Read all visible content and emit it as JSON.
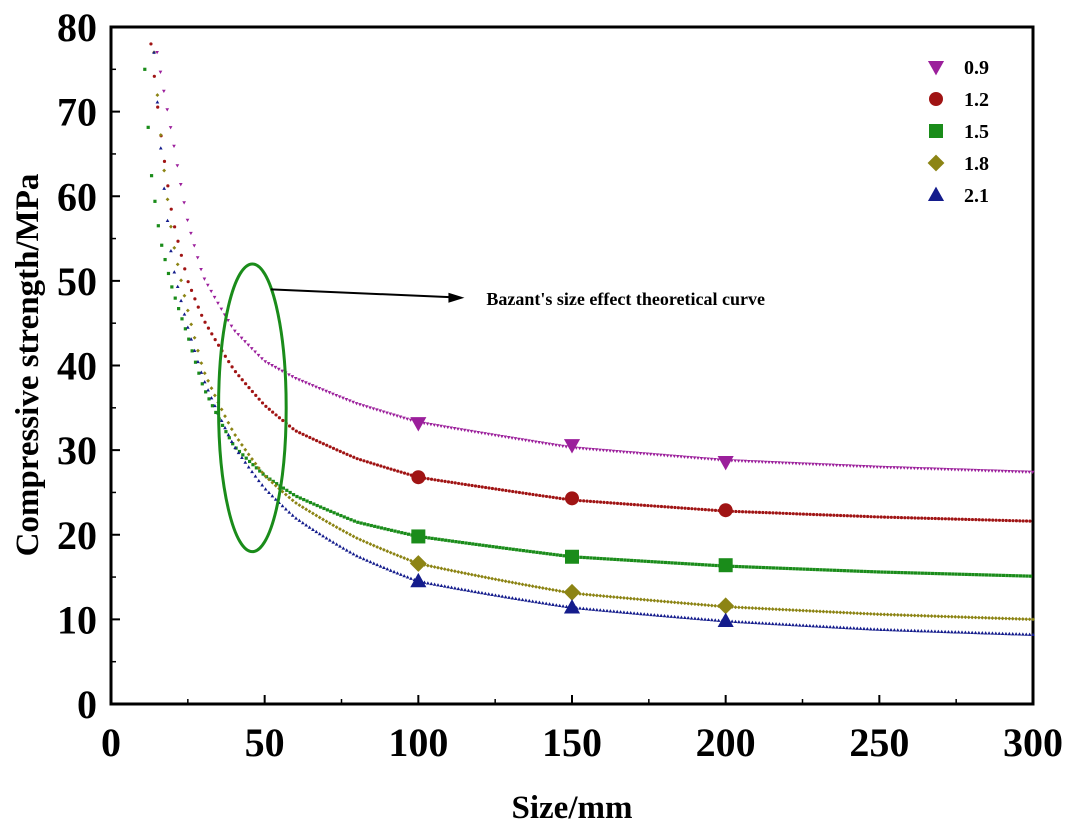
{
  "chart_data": {
    "type": "scatter",
    "title": "",
    "xlabel": "Size/mm",
    "ylabel": "Compressive strength/MPa",
    "xlim": [
      0,
      300
    ],
    "ylim": [
      0,
      80
    ],
    "xticks": [
      "0",
      "50",
      "100",
      "150",
      "200",
      "250",
      "300"
    ],
    "yticks": [
      "0",
      "10",
      "20",
      "30",
      "40",
      "50",
      "60",
      "70",
      "80"
    ],
    "grid": false,
    "legend_position": "top-right",
    "x": [
      100,
      150,
      200
    ],
    "series": [
      {
        "name": "0.9",
        "values": [
          33.2,
          30.6,
          28.6
        ],
        "color": "#9b1f9b",
        "marker": "triangle-down",
        "fit": {
          "x": [
            15,
            20,
            25,
            30,
            40,
            50,
            60,
            80,
            100,
            150,
            200,
            250,
            300
          ],
          "y": [
            77,
            67,
            57,
            50.5,
            44.2,
            40.5,
            38.5,
            35.5,
            33.3,
            30.3,
            28.8,
            28.0,
            27.4
          ]
        }
      },
      {
        "name": "1.2",
        "values": [
          26.8,
          24.3,
          22.9
        ],
        "color": "#a01414",
        "marker": "circle",
        "fit": {
          "x": [
            13,
            16,
            20,
            25,
            30,
            40,
            50,
            60,
            80,
            100,
            150,
            200,
            250,
            300
          ],
          "y": [
            78,
            68,
            57.5,
            50,
            45.5,
            39.5,
            35.3,
            32.3,
            29.0,
            26.8,
            24.1,
            22.8,
            22.1,
            21.6
          ]
        }
      },
      {
        "name": "1.5",
        "values": [
          19.8,
          17.4,
          16.4
        ],
        "color": "#1a8c1a",
        "marker": "square",
        "fit": {
          "x": [
            11,
            13,
            16,
            20,
            25,
            30,
            40,
            50,
            60,
            80,
            100,
            150,
            200,
            250,
            300
          ],
          "y": [
            75,
            63,
            55,
            49,
            43.5,
            37.5,
            30.5,
            27.0,
            24.6,
            21.5,
            19.8,
            17.4,
            16.3,
            15.6,
            15.1
          ]
        }
      },
      {
        "name": "1.8",
        "values": [
          16.6,
          13.2,
          11.6
        ],
        "color": "#8c8414",
        "marker": "diamond",
        "fit": {
          "x": [
            14,
            17,
            20,
            25,
            30,
            40,
            50,
            60,
            80,
            100,
            150,
            200,
            250,
            300
          ],
          "y": [
            77,
            64,
            55,
            46.5,
            39.5,
            32.0,
            27.0,
            23.8,
            19.6,
            16.6,
            13.1,
            11.5,
            10.6,
            10.0
          ]
        }
      },
      {
        "name": "2.1",
        "values": [
          14.5,
          11.4,
          9.8
        ],
        "color": "#141c8c",
        "marker": "triangle-up",
        "fit": {
          "x": [
            14,
            17,
            20,
            25,
            30,
            40,
            50,
            60,
            80,
            100,
            150,
            200,
            250,
            300
          ],
          "y": [
            77,
            62,
            52,
            44.5,
            38.5,
            30.5,
            25.5,
            22.0,
            17.5,
            14.5,
            11.4,
            9.8,
            8.8,
            8.2
          ]
        }
      }
    ],
    "annotation": {
      "text": "Bazant's size effect theoretical curve",
      "ellipse_center": [
        46,
        35
      ],
      "ellipse_radii": [
        11,
        17
      ],
      "ellipse_color": "#1a8c1a",
      "arrow_from": [
        52,
        49
      ],
      "arrow_to": [
        115,
        48
      ]
    }
  }
}
